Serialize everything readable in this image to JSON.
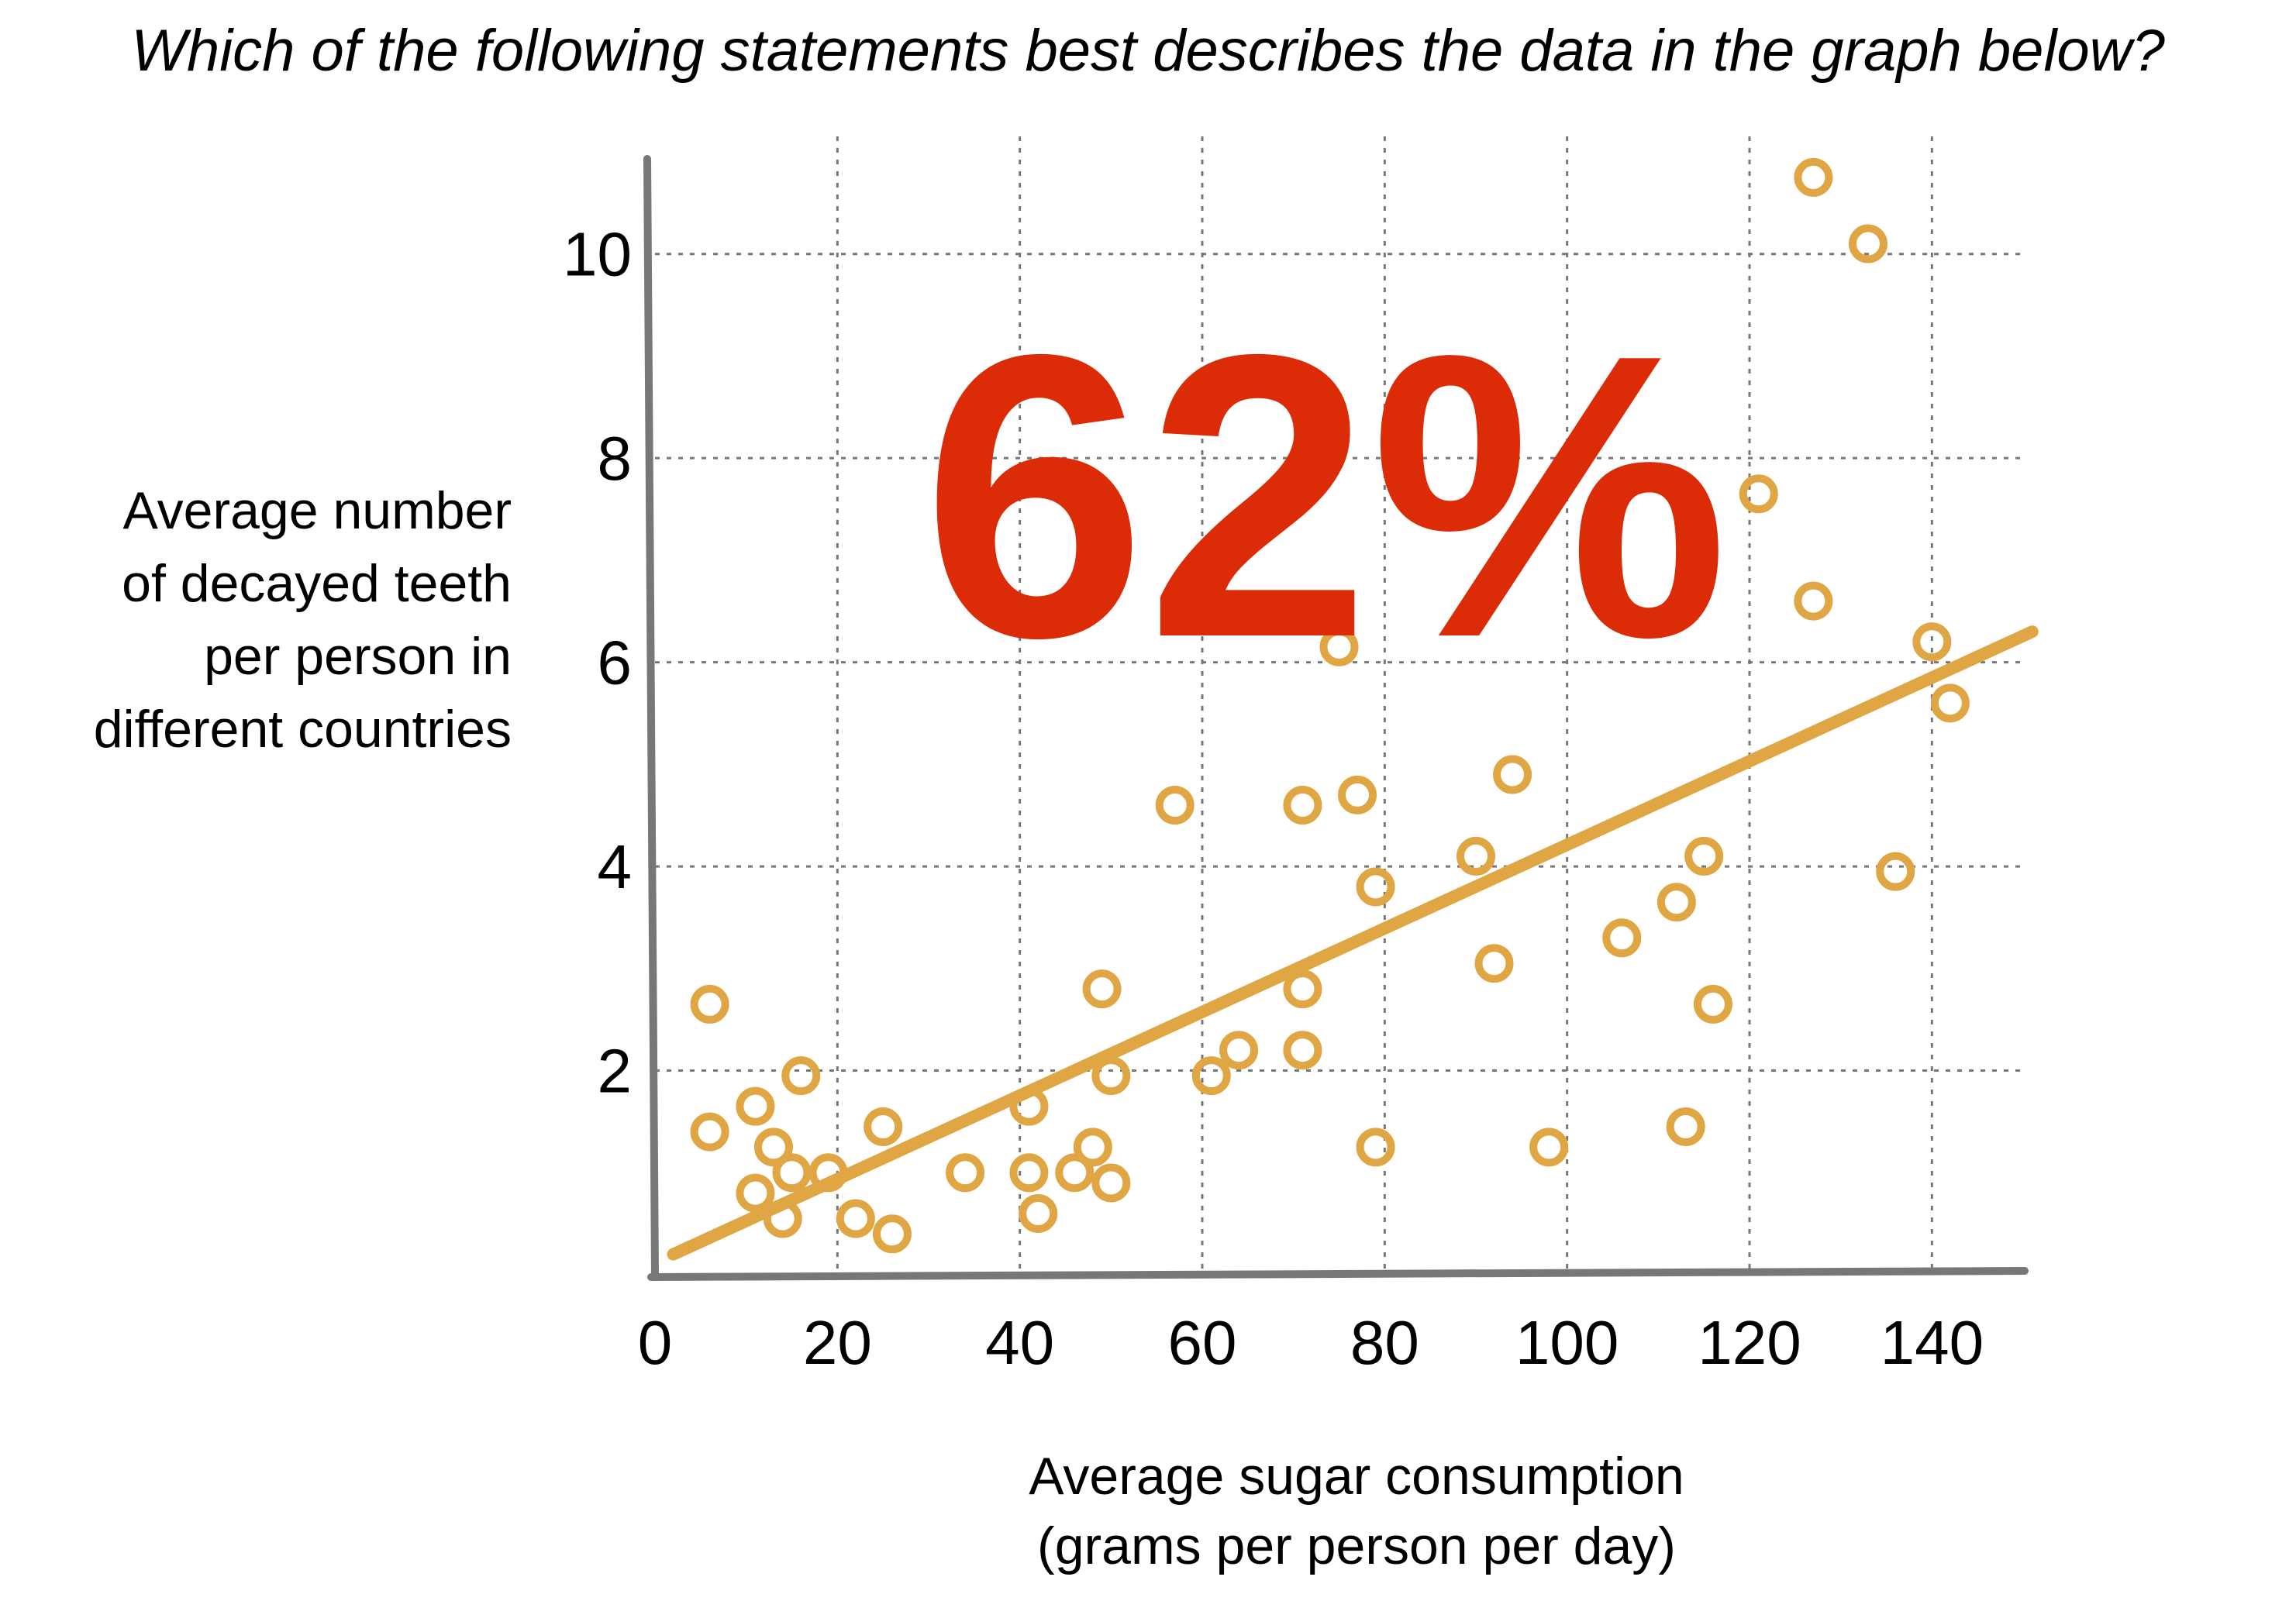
{
  "question": "Which of the following statements best describes the data in the graph below?",
  "overlay_value": "62%",
  "colors": {
    "points": "#E0A643",
    "trend": "#E0A643",
    "overlay": "#DC2B07",
    "axis": "#777777",
    "grid": "#777777"
  },
  "chart_data": {
    "type": "scatter",
    "title": "",
    "xlabel_lines": [
      "Average sugar consumption",
      "(grams per person per day)"
    ],
    "ylabel_lines": [
      "Average number",
      "of decayed teeth",
      "per person in",
      "different countries"
    ],
    "xlim": [
      0,
      150
    ],
    "ylim": [
      0,
      11
    ],
    "xticks": [
      0,
      20,
      40,
      60,
      80,
      100,
      120,
      140
    ],
    "xtick_labels": [
      "0",
      "20",
      "40",
      "60",
      "80",
      "100",
      "120",
      "140"
    ],
    "yticks": [
      2,
      4,
      6,
      8,
      10
    ],
    "ytick_labels": [
      "2",
      "4",
      "6",
      "8",
      "10"
    ],
    "grid": true,
    "trendline": {
      "x": [
        2,
        151
      ],
      "y": [
        0.2,
        6.3
      ]
    },
    "points": [
      {
        "x": 6,
        "y": 2.65
      },
      {
        "x": 6,
        "y": 1.4
      },
      {
        "x": 11,
        "y": 1.65
      },
      {
        "x": 11,
        "y": 0.8
      },
      {
        "x": 13,
        "y": 1.25
      },
      {
        "x": 14,
        "y": 0.55
      },
      {
        "x": 15,
        "y": 1.0
      },
      {
        "x": 16,
        "y": 1.95
      },
      {
        "x": 19,
        "y": 1.0
      },
      {
        "x": 22,
        "y": 0.55
      },
      {
        "x": 25,
        "y": 1.45
      },
      {
        "x": 26,
        "y": 0.4
      },
      {
        "x": 34,
        "y": 1.0
      },
      {
        "x": 41,
        "y": 1.65
      },
      {
        "x": 41,
        "y": 1.0
      },
      {
        "x": 42,
        "y": 0.6
      },
      {
        "x": 46,
        "y": 1.0
      },
      {
        "x": 48,
        "y": 1.25
      },
      {
        "x": 49,
        "y": 2.8
      },
      {
        "x": 50,
        "y": 1.95
      },
      {
        "x": 50,
        "y": 0.9
      },
      {
        "x": 57,
        "y": 4.6
      },
      {
        "x": 61,
        "y": 1.95
      },
      {
        "x": 64,
        "y": 2.2
      },
      {
        "x": 71,
        "y": 4.6
      },
      {
        "x": 71,
        "y": 2.8
      },
      {
        "x": 71,
        "y": 2.2
      },
      {
        "x": 75,
        "y": 6.15
      },
      {
        "x": 77,
        "y": 4.7
      },
      {
        "x": 79,
        "y": 3.8
      },
      {
        "x": 79,
        "y": 1.25
      },
      {
        "x": 90,
        "y": 4.1
      },
      {
        "x": 92,
        "y": 3.05
      },
      {
        "x": 94,
        "y": 4.9
      },
      {
        "x": 98,
        "y": 1.25
      },
      {
        "x": 106,
        "y": 3.3
      },
      {
        "x": 112,
        "y": 3.65
      },
      {
        "x": 113,
        "y": 1.45
      },
      {
        "x": 115,
        "y": 4.1
      },
      {
        "x": 116,
        "y": 2.65
      },
      {
        "x": 121,
        "y": 7.65
      },
      {
        "x": 127,
        "y": 10.75
      },
      {
        "x": 127,
        "y": 6.6
      },
      {
        "x": 133,
        "y": 10.1
      },
      {
        "x": 136,
        "y": 3.95
      },
      {
        "x": 140,
        "y": 6.2
      },
      {
        "x": 142,
        "y": 5.6
      }
    ]
  }
}
